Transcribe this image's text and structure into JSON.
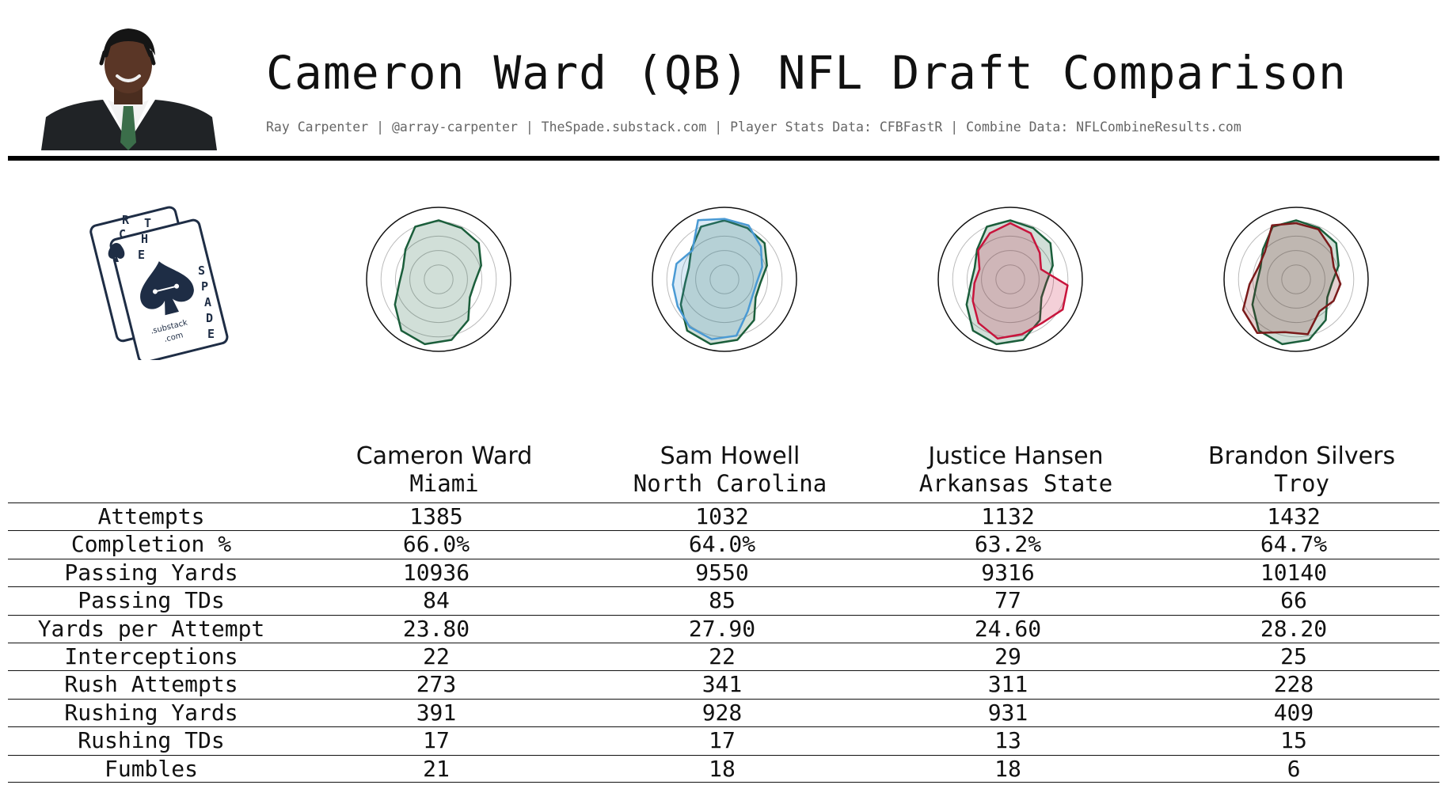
{
  "header": {
    "title": "Cameron Ward (QB) NFL Draft Comparison",
    "subtitle": "Ray Carpenter | @array-carpenter | TheSpade.substack.com | Player Stats Data: CFBFastR | Combine Data: NFLCombineResults.com"
  },
  "logo": {
    "letters": [
      "R",
      "C",
      "T",
      "H",
      "E",
      "S",
      "P",
      "A",
      "D",
      "E"
    ],
    "domain_top": ".substack",
    "domain_bottom": ".com"
  },
  "colors": {
    "ward": "#1b5e3b",
    "ward_fill": "#1b5e3b",
    "howell": "#4a9ad4",
    "hansen": "#c8143c",
    "silvers": "#7a1a1a"
  },
  "players": [
    {
      "name": "Cameron Ward",
      "school": "Miami"
    },
    {
      "name": "Sam Howell",
      "school": "North Carolina"
    },
    {
      "name": "Justice Hansen",
      "school": "Arkansas State"
    },
    {
      "name": "Brandon Silvers",
      "school": "Troy"
    }
  ],
  "chart_data": {
    "type": "table",
    "columns": [
      "Cameron Ward",
      "Sam Howell",
      "Justice Hansen",
      "Brandon Silvers"
    ],
    "rows": [
      {
        "label": "Attempts",
        "values": [
          "1385",
          "1032",
          "1132",
          "1432"
        ]
      },
      {
        "label": "Completion %",
        "values": [
          "66.0%",
          "64.0%",
          "63.2%",
          "64.7%"
        ]
      },
      {
        "label": "Passing Yards",
        "values": [
          "10936",
          "9550",
          "9316",
          "10140"
        ]
      },
      {
        "label": "Passing TDs",
        "values": [
          "84",
          "85",
          "77",
          "66"
        ]
      },
      {
        "label": "Yards per Attempt",
        "values": [
          "23.80",
          "27.90",
          "24.60",
          "28.20"
        ]
      },
      {
        "label": "Interceptions",
        "values": [
          "22",
          "22",
          "29",
          "25"
        ]
      },
      {
        "label": "Rush Attempts",
        "values": [
          "273",
          "341",
          "311",
          "228"
        ]
      },
      {
        "label": "Rushing Yards",
        "values": [
          "391",
          "928",
          "931",
          "409"
        ]
      },
      {
        "label": "Rushing TDs",
        "values": [
          "17",
          "17",
          "13",
          "15"
        ]
      },
      {
        "label": "Fumbles",
        "values": [
          "21",
          "18",
          "18",
          "6"
        ]
      }
    ],
    "radars": [
      {
        "type": "radar",
        "series": [
          {
            "player": "Cameron Ward",
            "values": [
              0.82,
              0.78,
              0.75,
              0.62,
              0.5,
              0.5,
              0.7,
              0.86,
              0.92,
              0.88,
              0.7,
              0.55,
              0.52,
              0.62,
              0.8
            ]
          }
        ]
      },
      {
        "type": "radar",
        "series": [
          {
            "player": "Cameron Ward",
            "values": [
              0.82,
              0.78,
              0.75,
              0.62,
              0.5,
              0.5,
              0.7,
              0.86,
              0.92,
              0.88,
              0.7,
              0.55,
              0.52,
              0.62,
              0.8
            ]
          },
          {
            "player": "Sam Howell",
            "values": [
              0.84,
              0.82,
              0.68,
              0.55,
              0.45,
              0.45,
              0.55,
              0.8,
              0.85,
              0.82,
              0.75,
              0.72,
              0.7,
              0.6,
              0.9
            ]
          }
        ]
      },
      {
        "type": "radar",
        "series": [
          {
            "player": "Cameron Ward",
            "values": [
              0.82,
              0.78,
              0.75,
              0.62,
              0.5,
              0.5,
              0.7,
              0.86,
              0.92,
              0.88,
              0.7,
              0.55,
              0.52,
              0.62,
              0.8
            ]
          },
          {
            "player": "Justice Hansen",
            "values": [
              0.78,
              0.7,
              0.55,
              0.45,
              0.8,
              0.84,
              0.75,
              0.78,
              0.84,
              0.75,
              0.6,
              0.5,
              0.45,
              0.6,
              0.7
            ]
          }
        ]
      },
      {
        "type": "radar",
        "series": [
          {
            "player": "Cameron Ward",
            "values": [
              0.82,
              0.78,
              0.75,
              0.62,
              0.5,
              0.5,
              0.7,
              0.86,
              0.92,
              0.88,
              0.7,
              0.55,
              0.52,
              0.62,
              0.8
            ]
          },
          {
            "player": "Brandon Silvers",
            "values": [
              0.78,
              0.76,
              0.65,
              0.55,
              0.62,
              0.6,
              0.55,
              0.78,
              0.75,
              0.92,
              0.85,
              0.65,
              0.55,
              0.58,
              0.82
            ]
          }
        ]
      }
    ]
  }
}
